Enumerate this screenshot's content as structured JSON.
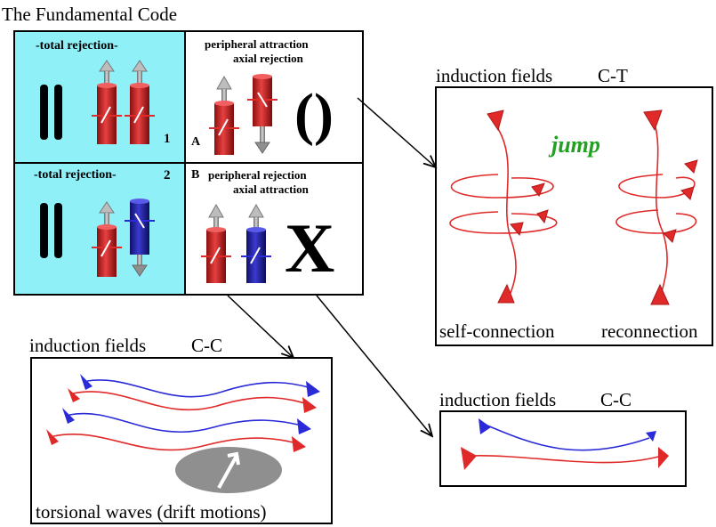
{
  "diagram": {
    "title": "The Fundamental Code",
    "panel_1": {
      "label": "-total rejection-",
      "number": "1"
    },
    "panel_2": {
      "label": "-total rejection-",
      "number": "2"
    },
    "panel_a": {
      "line1": "peripheral attraction",
      "line2": "axial rejection",
      "letter": "A",
      "symbol": "()"
    },
    "panel_b": {
      "letter": "B",
      "line1": "peripheral rejection",
      "line2": "axial attraction",
      "symbol": "X"
    },
    "ct": {
      "caption": "induction fields",
      "code": "C-T",
      "jump": "jump",
      "left": "self-connection",
      "right": "reconnection"
    },
    "cc_left": {
      "caption": "induction fields",
      "code": "C-C",
      "bottom": "torsional waves (drift motions)"
    },
    "cc_right": {
      "caption": "induction fields",
      "code": "C-C"
    },
    "colors": {
      "cyan": "#8ff0f8",
      "red": "#e02a2a",
      "dark_red": "#b01818",
      "blue": "#2a2ad8",
      "navy": "#1c1c8a",
      "green": "#22a022",
      "gray": "#8f8f8f"
    }
  }
}
